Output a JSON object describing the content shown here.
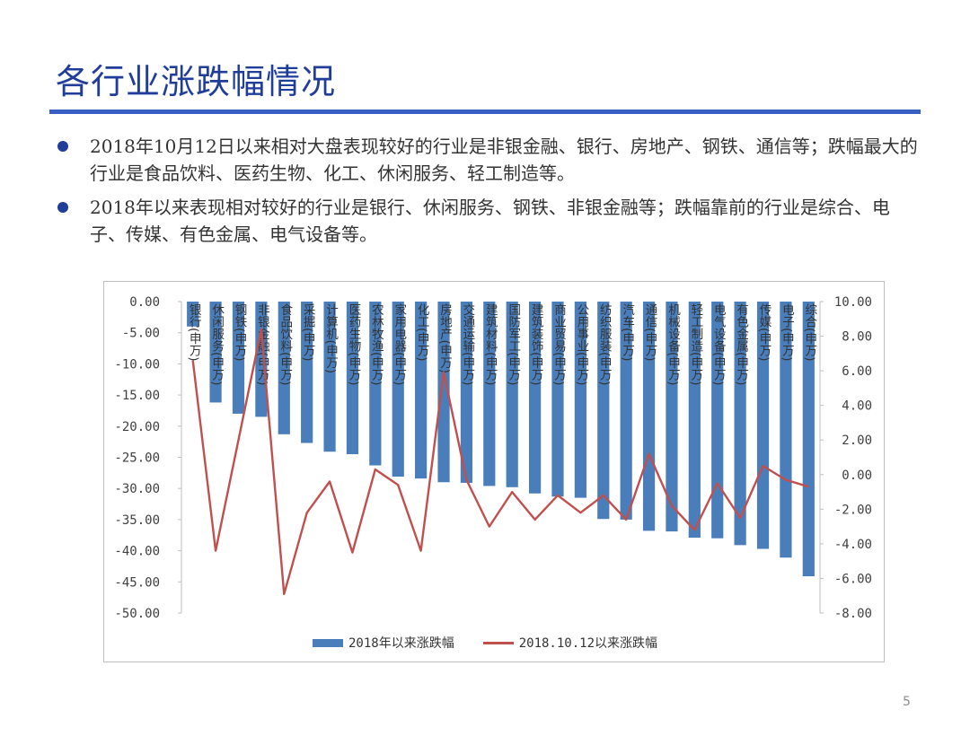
{
  "slide": {
    "title": "各行业涨跌幅情况",
    "bullets": [
      "2018年10月12日以来相对大盘表现较好的行业是非银金融、银行、房地产、钢铁、通信等；跌幅最大的行业是食品饮料、医药生物、化工、休闲服务、轻工制造等。",
      "2018年以来表现相对较好的行业是银行、休闲服务、钢铁、非银金融等；跌幅靠前的行业是综合、电子、传媒、有色金属、电气设备等。"
    ],
    "page_number": "5"
  },
  "colors": {
    "bar": "#4a7ebb",
    "line": "#c0504d",
    "title": "#1f3d99",
    "rule": "#3a5fc4"
  },
  "chart_data": {
    "type": "bar",
    "categories": [
      "银行(申万)",
      "休闲服务(申万)",
      "钢铁(申万)",
      "非银金融(申万)",
      "食品饮料(申万)",
      "采掘(申万)",
      "计算机(申万)",
      "医药生物(申万)",
      "农林牧渔(申万)",
      "家用电器(申万)",
      "化工(申万)",
      "房地产(申万)",
      "交通运输(申万)",
      "建筑材料(申万)",
      "国防军工(申万)",
      "建筑装饰(申万)",
      "商业贸易(申万)",
      "公用事业(申万)",
      "纺织服装(申万)",
      "汽车(申万)",
      "通信(申万)",
      "机械设备(申万)",
      "轻工制造(申万)",
      "电气设备(申万)",
      "有色金属(申万)",
      "传媒(申万)",
      "电子(申万)",
      "综合(申万)"
    ],
    "series": [
      {
        "name": "2018年以来涨跌幅",
        "type": "bar",
        "axis": "left",
        "values": [
          -4.0,
          -16.2,
          -18.0,
          -18.5,
          -21.3,
          -22.7,
          -24.1,
          -24.5,
          -26.3,
          -28.1,
          -28.4,
          -29.0,
          -29.1,
          -29.6,
          -29.8,
          -30.8,
          -31.3,
          -31.5,
          -34.9,
          -35.0,
          -36.8,
          -36.9,
          -37.9,
          -38.0,
          -39.1,
          -39.7,
          -41.1,
          -44.1
        ]
      },
      {
        "name": "2018.10.12以来涨跌幅",
        "type": "line",
        "axis": "right",
        "values": [
          6.6,
          -4.4,
          2.0,
          8.4,
          -6.9,
          -2.2,
          -0.4,
          -4.5,
          0.3,
          -0.6,
          -4.4,
          5.9,
          -0.3,
          -3.0,
          -1.0,
          -2.6,
          -1.2,
          -2.2,
          -1.2,
          -2.6,
          1.2,
          -1.8,
          -3.2,
          -0.5,
          -2.5,
          0.5,
          -0.3,
          -0.7
        ]
      }
    ],
    "y_left": {
      "lim": [
        -50,
        0
      ],
      "step": 5,
      "tick_labels": [
        "0.00",
        "-5.00",
        "-10.00",
        "-15.00",
        "-20.00",
        "-25.00",
        "-30.00",
        "-35.00",
        "-40.00",
        "-45.00",
        "-50.00"
      ]
    },
    "y_right": {
      "lim": [
        -8,
        10
      ],
      "step": 2,
      "tick_labels": [
        "10.00",
        "8.00",
        "6.00",
        "4.00",
        "2.00",
        "0.00",
        "-2.00",
        "-4.00",
        "-6.00",
        "-8.00"
      ]
    },
    "legend": {
      "position": "bottom",
      "entries": [
        "2018年以来涨跌幅",
        "2018.10.12以来涨跌幅"
      ]
    },
    "grid": false
  }
}
